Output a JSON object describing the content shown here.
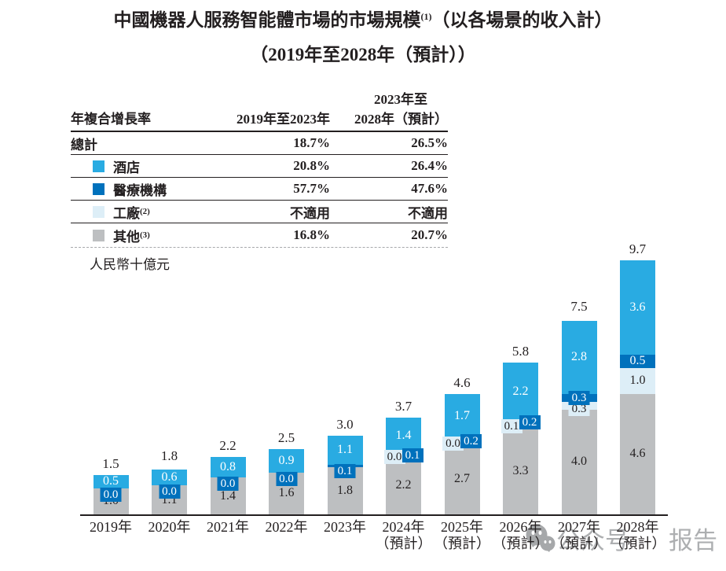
{
  "title": {
    "line1_prefix": "中國機器人服務智能體市場的市場規模",
    "line1_sup": "(1)",
    "line1_suffix": "（以各場景的收入計）",
    "line2": "（2019年至2028年（預計））"
  },
  "table": {
    "header": {
      "col1": "年複合增長率",
      "col2": "2019年至2023年",
      "col3_line1": "2023年至",
      "col3_line2": "2028年（預計）"
    },
    "rows": [
      {
        "label": "總計",
        "sup": "",
        "swatch": null,
        "v1": "18.7%",
        "v2": "26.5%"
      },
      {
        "label": "酒店",
        "sup": "",
        "swatch": "#29ABE2",
        "v1": "20.8%",
        "v2": "26.4%"
      },
      {
        "label": "醫療機構",
        "sup": "",
        "swatch": "#0071BC",
        "v1": "57.7%",
        "v2": "47.6%"
      },
      {
        "label": "工廠",
        "sup": "(2)",
        "swatch": "#DDEEF7",
        "v1": "不適用",
        "v2": "不適用"
      },
      {
        "label": "其他",
        "sup": "(3)",
        "swatch": "#BDBFC1",
        "v1": "16.8%",
        "v2": "20.7%"
      }
    ]
  },
  "unit_label": "人民幣十億元",
  "chart_data": {
    "type": "bar",
    "stacked": true,
    "title": "中國機器人服務智能體市場的市場規模（以各場景的收入計）(2019年至2028年（預計）)",
    "ylabel": "人民幣十億元",
    "ylim": [
      0,
      10
    ],
    "grid": false,
    "categories": [
      {
        "line1": "2019年",
        "line2": ""
      },
      {
        "line1": "2020年",
        "line2": ""
      },
      {
        "line1": "2021年",
        "line2": ""
      },
      {
        "line1": "2022年",
        "line2": ""
      },
      {
        "line1": "2023年",
        "line2": ""
      },
      {
        "line1": "2024年",
        "line2": "（預計）"
      },
      {
        "line1": "2025年",
        "line2": "（預計）"
      },
      {
        "line1": "2026年",
        "line2": "（預計）"
      },
      {
        "line1": "2027年",
        "line2": "（預計）"
      },
      {
        "line1": "2028年",
        "line2": "（預計）"
      }
    ],
    "series": [
      {
        "name": "其他",
        "color": "#BDBFC1",
        "label_color": "#231F20",
        "values": [
          1.0,
          1.1,
          1.4,
          1.6,
          1.8,
          2.2,
          2.7,
          3.3,
          4.0,
          4.6
        ]
      },
      {
        "name": "工廠",
        "color": "#DDEEF7",
        "label_color": "#231F20",
        "values": [
          null,
          null,
          null,
          null,
          null,
          0.0,
          0.0,
          0.1,
          0.3,
          1.0
        ]
      },
      {
        "name": "醫療機構",
        "color": "#0071BC",
        "label_color": "#ffffff",
        "values": [
          0.0,
          0.0,
          0.0,
          0.0,
          0.1,
          0.1,
          0.2,
          0.2,
          0.3,
          0.5
        ]
      },
      {
        "name": "酒店",
        "color": "#29ABE2",
        "label_color": "#ffffff",
        "values": [
          0.5,
          0.6,
          0.8,
          0.9,
          1.1,
          1.4,
          1.7,
          2.2,
          2.8,
          3.6
        ]
      }
    ],
    "totals": [
      1.5,
      1.8,
      2.2,
      2.5,
      3.0,
      3.7,
      4.6,
      5.8,
      7.5,
      9.7
    ],
    "chip_layout": [
      "center",
      "center",
      "center",
      "center",
      "center",
      "side",
      "side",
      "side",
      "stacked",
      "none"
    ],
    "legend_position": "table-top-left"
  },
  "watermark": {
    "icon": "wechat-icon",
    "text_left": "公众号",
    "text_right": "报告"
  }
}
